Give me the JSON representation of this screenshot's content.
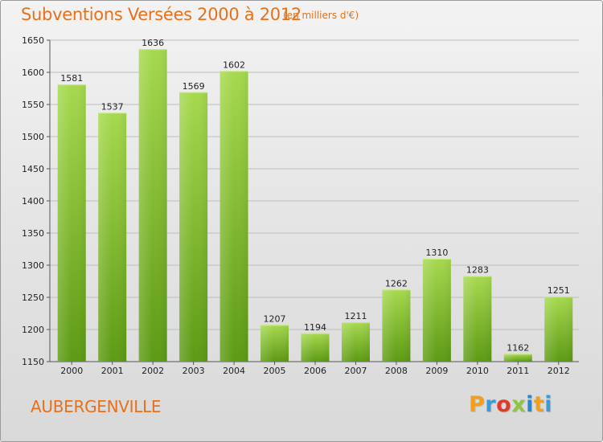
{
  "header": {
    "title": "Subventions Versées 2000 à 2012",
    "subtitle": "(en milliers d'€)"
  },
  "footer": {
    "place": "AUBERGENVILLE",
    "logo_letters": [
      "P",
      "r",
      "o",
      "x",
      "i",
      "t",
      "i"
    ],
    "logo_colors": [
      "#f0a01e",
      "#3b9ad8",
      "#e23a2a",
      "#8ec63f",
      "#2e86c8",
      "#f0a01e",
      "#3b9ad8"
    ]
  },
  "chart_data": {
    "type": "bar",
    "title": "Subventions Versées 2000 à 2012",
    "subtitle": "(en milliers d'€)",
    "categories": [
      "2000",
      "2001",
      "2002",
      "2003",
      "2004",
      "2005",
      "2006",
      "2007",
      "2008",
      "2009",
      "2010",
      "2011",
      "2012"
    ],
    "values": [
      1581,
      1537,
      1636,
      1569,
      1602,
      1207,
      1194,
      1211,
      1262,
      1310,
      1283,
      1162,
      1251
    ],
    "ylim": [
      1150,
      1650
    ],
    "yticks": [
      1150,
      1200,
      1250,
      1300,
      1350,
      1400,
      1450,
      1500,
      1550,
      1600,
      1650
    ],
    "grid": true,
    "bar_color_top": "#a6d94e",
    "bar_color_bottom": "#5d9a14"
  }
}
